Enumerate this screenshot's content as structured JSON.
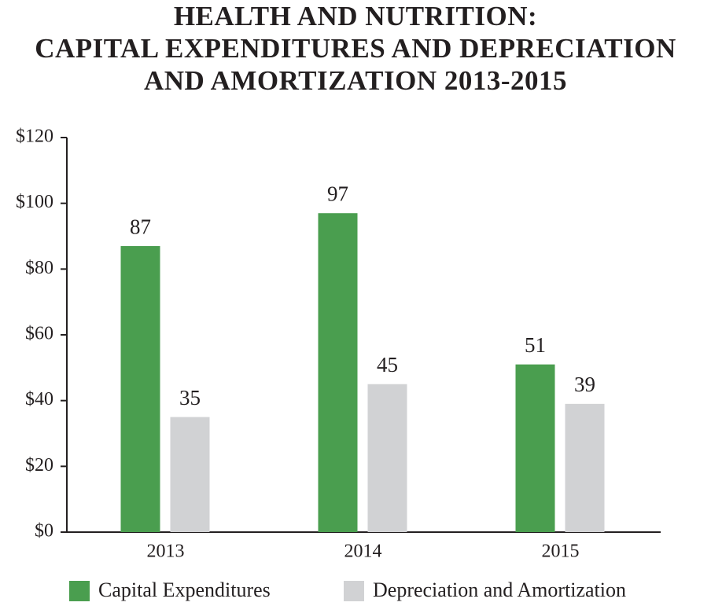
{
  "chart_data": {
    "type": "bar",
    "title": [
      "HEALTH AND NUTRITION:",
      "CAPITAL EXPENDITURES AND DEPRECIATION",
      "AND AMORTIZATION 2013-2015"
    ],
    "categories": [
      "2013",
      "2014",
      "2015"
    ],
    "series": [
      {
        "name": "Capital Expenditures",
        "color": "#4a9e4f",
        "values": [
          87,
          97,
          51
        ]
      },
      {
        "name": "Depreciation and Amortization",
        "color": "#d1d2d4",
        "values": [
          35,
          45,
          39
        ]
      }
    ],
    "ylim": [
      0,
      120
    ],
    "yticks": [
      {
        "value": 0,
        "label": "$0"
      },
      {
        "value": 20,
        "label": "$20"
      },
      {
        "value": 40,
        "label": "$40"
      },
      {
        "value": 60,
        "label": "$60"
      },
      {
        "value": 80,
        "label": "$80"
      },
      {
        "value": 100,
        "label": "$100"
      },
      {
        "value": 120,
        "label": "$120"
      }
    ],
    "legend": "bottom"
  }
}
